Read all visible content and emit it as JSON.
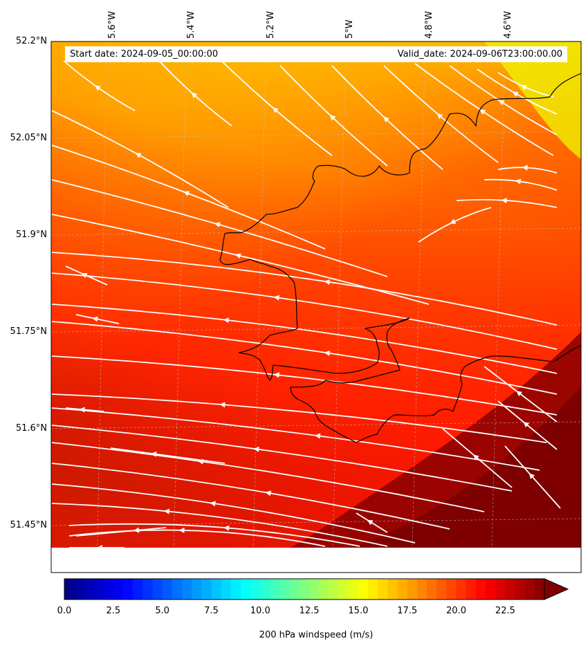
{
  "header": {
    "start_date": "Start date: 2024-09-05_00:00:00",
    "valid_date": "Valid_date: 2024-09-06T23:00:00.00"
  },
  "axes": {
    "lat_labels": [
      "52.2°N",
      "52.05°N",
      "51.9°N",
      "51.75°N",
      "51.6°N",
      "51.45°N"
    ],
    "lon_labels": [
      "5.6°W",
      "5.4°W",
      "5.2°W",
      "5°W",
      "4.8°W",
      "4.6°W"
    ]
  },
  "field": {
    "variable": "200 hPa windspeed",
    "min_value": 16.5,
    "max_value": 24.5,
    "colormap": "jet"
  },
  "colorbar": {
    "ticks": [
      "0.0",
      "2.5",
      "5.0",
      "7.5",
      "10.0",
      "12.5",
      "15.0",
      "17.5",
      "20.0",
      "22.5"
    ],
    "label": "200 hPa windspeed (m/s)",
    "range": [
      0,
      24.5
    ],
    "extend": "max",
    "colors": {
      "low": "#00007f",
      "mid": "#7fff7f",
      "high": "#7f0000"
    }
  },
  "style": {
    "streamline_color": "#ffffff",
    "coastline_color": "#000000",
    "gridline_color": "#c8c8c8"
  }
}
